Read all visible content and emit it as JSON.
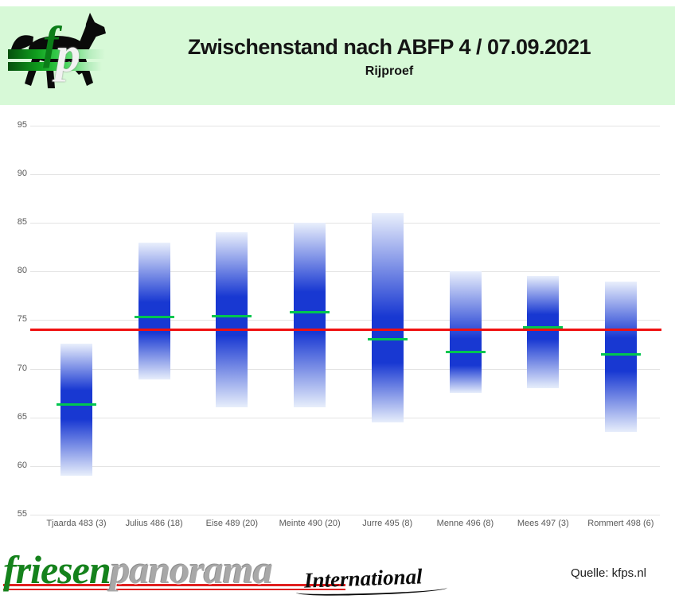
{
  "header": {
    "title": "Zwischenstand nach ABFP 4 / 07.09.2021",
    "subtitle": "Rijproef",
    "logo": {
      "f": "f",
      "p": "p"
    }
  },
  "chart_data": {
    "type": "bar",
    "subtype": "floating-range-bars-with-mean-marker",
    "title": "Zwischenstand nach ABFP 4 / 07.09.2021",
    "subtitle": "Rijproef",
    "categories": [
      "Tjaarda 483 (3)",
      "Julius 486 (18)",
      "Eise 489 (20)",
      "Meinte 490 (20)",
      "Jurre 495 (8)",
      "Menne 496 (8)",
      "Mees 497 (3)",
      "Rommert 498 (6)"
    ],
    "series": [
      {
        "name": "range_min",
        "values": [
          59.0,
          68.9,
          66.0,
          66.0,
          64.5,
          67.5,
          68.0,
          63.5
        ]
      },
      {
        "name": "range_max",
        "values": [
          72.6,
          83.0,
          84.0,
          85.0,
          86.0,
          80.0,
          79.5,
          79.0
        ]
      },
      {
        "name": "mean",
        "values": [
          66.3,
          75.3,
          75.4,
          75.8,
          73.0,
          71.7,
          74.3,
          71.5
        ]
      }
    ],
    "reference_line": 74,
    "ylim": [
      55,
      95
    ],
    "yticks": [
      55,
      60,
      65,
      70,
      75,
      80,
      85,
      90,
      95
    ],
    "grid": true,
    "legend": "none",
    "colors": {
      "bar_dark": "#1838d2",
      "bar_light_top": "#e9effc",
      "bar_light_bottom": "#e7eefb",
      "mean_line": "#00c650",
      "reference_line": "#ef1010",
      "grid": "#e4e4e4",
      "axis_text": "#595959",
      "header_bg": "#d7f9d7"
    }
  },
  "footer": {
    "brand_left": "friesen",
    "brand_right": "panorama",
    "brand_script": "International",
    "source": "Quelle: kfps.nl"
  }
}
